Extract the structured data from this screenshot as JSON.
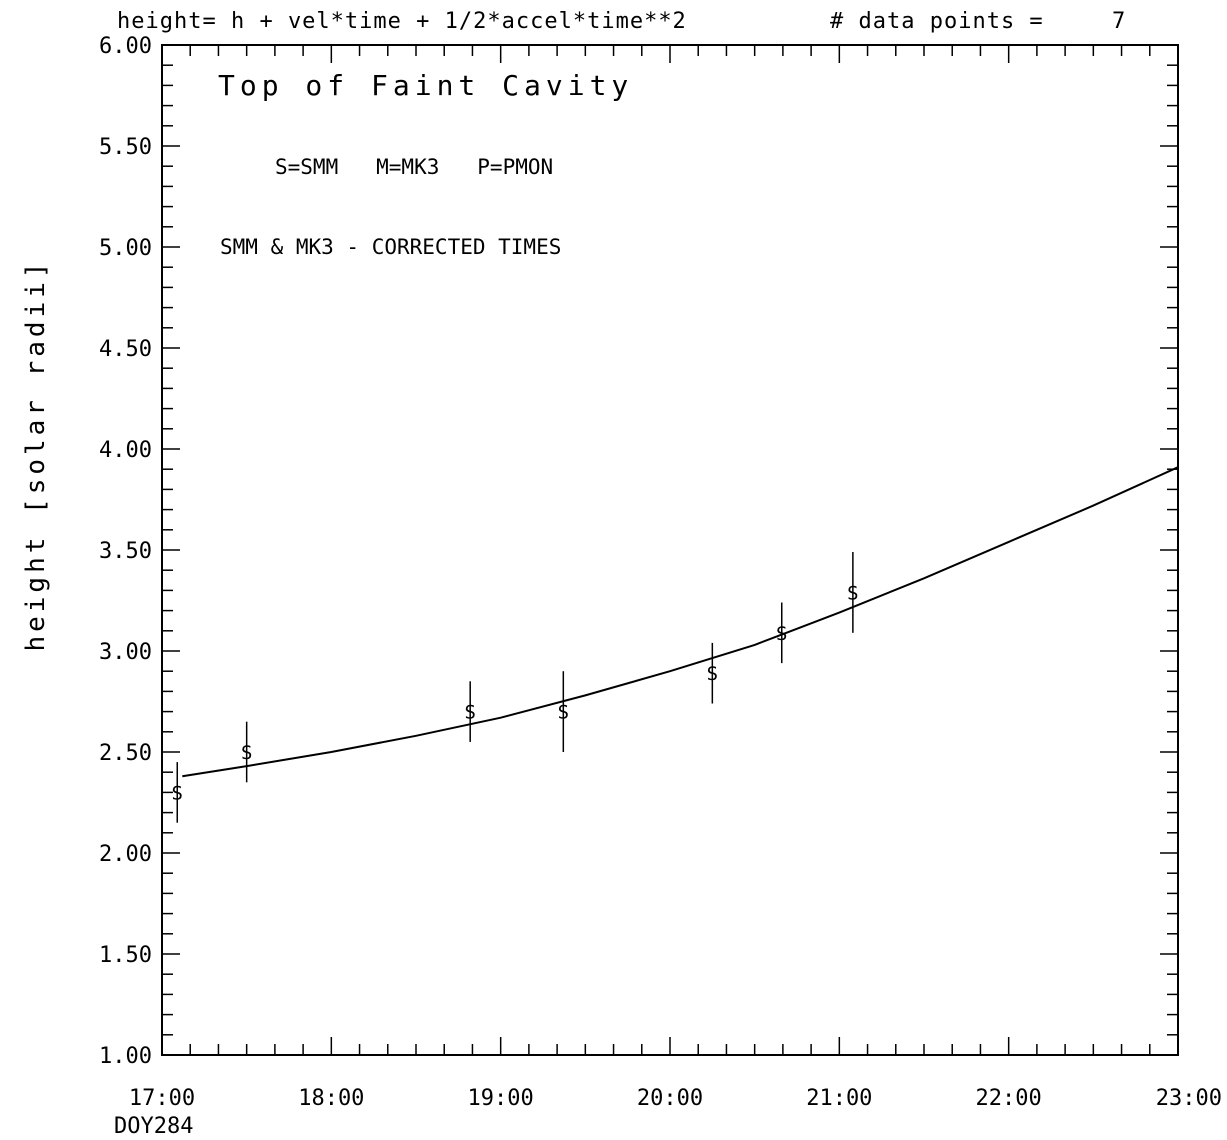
{
  "header": {
    "formula": "height= h + vel*time + 1/2*accel*time**2",
    "points_label": "# data points =",
    "points_value": "7"
  },
  "chart_data": {
    "type": "scatter",
    "title": "Top of Faint Cavity",
    "annotations": [
      "S=SMM   M=MK3   P=PMON",
      "SMM & MK3 - CORRECTED TIMES"
    ],
    "xlabel": "",
    "xlabel_sub": "DOY284",
    "ylabel": "height [solar radii]",
    "xlim": [
      17.0,
      23.0
    ],
    "ylim": [
      1.0,
      6.0
    ],
    "x_tick_values": [
      17,
      18,
      19,
      20,
      21,
      22,
      23
    ],
    "x_tick_labels": [
      "17:00",
      "18:00",
      "19:00",
      "20:00",
      "21:00",
      "22:00",
      "23:00"
    ],
    "y_tick_values": [
      1.0,
      1.5,
      2.0,
      2.5,
      3.0,
      3.5,
      4.0,
      4.5,
      5.0,
      5.5,
      6.0
    ],
    "y_tick_labels": [
      "1.00",
      "1.50",
      "2.00",
      "2.50",
      "3.00",
      "3.50",
      "4.00",
      "4.50",
      "5.00",
      "5.50",
      "6.00"
    ],
    "grid": false,
    "series": [
      {
        "marker": "S",
        "points": [
          {
            "x": 17.09,
            "y": 2.3,
            "err": 0.15
          },
          {
            "x": 17.5,
            "y": 2.5,
            "err": 0.15
          },
          {
            "x": 18.82,
            "y": 2.7,
            "err": 0.15
          },
          {
            "x": 19.37,
            "y": 2.7,
            "err": 0.2
          },
          {
            "x": 20.25,
            "y": 2.89,
            "err": 0.15
          },
          {
            "x": 20.66,
            "y": 3.09,
            "err": 0.15
          },
          {
            "x": 21.08,
            "y": 3.29,
            "err": 0.2
          }
        ]
      }
    ],
    "fit": {
      "x": [
        17.12,
        17.5,
        18.0,
        18.5,
        19.0,
        19.5,
        20.0,
        20.5,
        21.0,
        21.5,
        22.0,
        22.5,
        23.0
      ],
      "y": [
        2.38,
        2.43,
        2.5,
        2.58,
        2.67,
        2.78,
        2.9,
        3.03,
        3.19,
        3.36,
        3.54,
        3.72,
        3.91
      ]
    }
  }
}
